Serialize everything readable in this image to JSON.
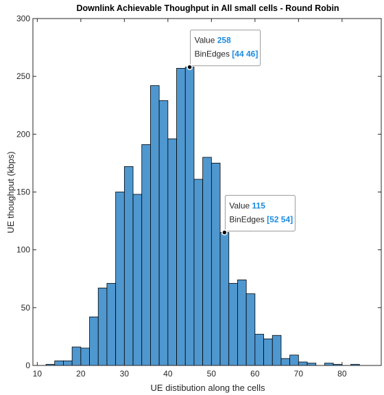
{
  "chart_data": {
    "type": "histogram",
    "title": "Downlink Achievable Thoughput in All small cells - Round Robin",
    "xlabel": "UE distibution along the cells",
    "ylabel": "UE thoughput (kbps)",
    "xlim": [
      9,
      89
    ],
    "ylim": [
      0,
      300
    ],
    "xticks": [
      10,
      20,
      30,
      40,
      50,
      60,
      70,
      80
    ],
    "yticks": [
      0,
      50,
      100,
      150,
      200,
      250,
      300
    ],
    "bin_width": 2,
    "bin_edges_start": [
      12,
      14,
      16,
      18,
      20,
      22,
      24,
      26,
      28,
      30,
      32,
      34,
      36,
      38,
      40,
      42,
      44,
      46,
      48,
      50,
      52,
      54,
      56,
      58,
      60,
      62,
      64,
      66,
      68,
      70,
      72,
      74,
      76,
      78,
      80,
      82
    ],
    "values": [
      1,
      4,
      4,
      16,
      15,
      42,
      67,
      71,
      150,
      172,
      148,
      191,
      242,
      229,
      196,
      257,
      258,
      161,
      180,
      175,
      115,
      71,
      74,
      62,
      27,
      23,
      26,
      6,
      9,
      3,
      2,
      0,
      2,
      1,
      0,
      1
    ],
    "bar_color": "#4f97cf",
    "grid": false,
    "datatips": [
      {
        "value_label": "Value",
        "value": "258",
        "edges_label": "BinEdges",
        "edges": "[44 46]",
        "x": 45,
        "y": 258
      },
      {
        "value_label": "Value",
        "value": "115",
        "edges_label": "BinEdges",
        "edges": "[52 54]",
        "x": 53,
        "y": 115
      }
    ]
  }
}
